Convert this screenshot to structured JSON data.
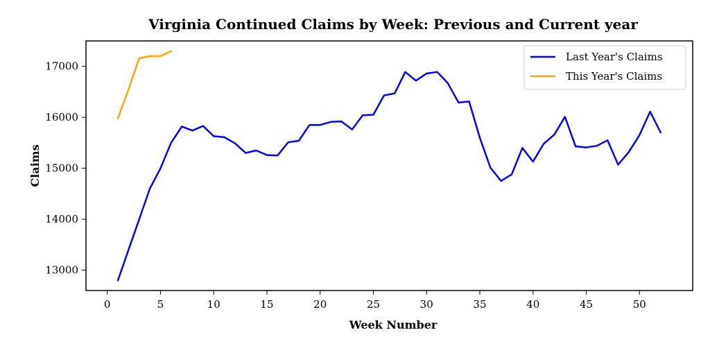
{
  "chart_data": {
    "type": "line",
    "title": "Virginia Continued Claims by Week: Previous and Current year",
    "xlabel": "Week Number",
    "ylabel": "Claims",
    "xlim": [
      -2,
      55
    ],
    "ylim": [
      12600,
      17500
    ],
    "xticks": [
      0,
      5,
      10,
      15,
      20,
      25,
      30,
      35,
      40,
      45,
      50
    ],
    "yticks": [
      13000,
      14000,
      15000,
      16000,
      17000
    ],
    "grid": false,
    "legend": "top-right",
    "series": [
      {
        "name": "Last Year's Claims",
        "color": "#0000ff",
        "x": [
          1,
          2,
          3,
          4,
          5,
          6,
          7,
          8,
          9,
          10,
          11,
          12,
          13,
          14,
          15,
          16,
          17,
          18,
          19,
          20,
          21,
          22,
          23,
          24,
          25,
          26,
          27,
          28,
          29,
          30,
          31,
          32,
          33,
          34,
          35,
          36,
          37,
          38,
          39,
          40,
          41,
          42,
          43,
          44,
          45,
          46,
          47,
          48,
          49,
          50,
          51,
          52
        ],
        "values": [
          12800,
          13400,
          14000,
          14600,
          15000,
          15500,
          15820,
          15740,
          15830,
          15630,
          15610,
          15490,
          15300,
          15350,
          15260,
          15250,
          15510,
          15540,
          15850,
          15850,
          15910,
          15920,
          15760,
          16040,
          16050,
          16430,
          16470,
          16890,
          16720,
          16860,
          16890,
          16670,
          16290,
          16310,
          15600,
          15010,
          14750,
          14880,
          15400,
          15130,
          15480,
          15660,
          16010,
          15430,
          15410,
          15440,
          15550,
          15070,
          15320,
          15650,
          16110,
          15700
        ]
      },
      {
        "name": "This Year's Claims",
        "color": "#ffa500",
        "x": [
          1,
          2,
          3,
          4,
          5,
          6
        ],
        "values": [
          15980,
          16550,
          17160,
          17200,
          17200,
          17300
        ]
      }
    ]
  }
}
